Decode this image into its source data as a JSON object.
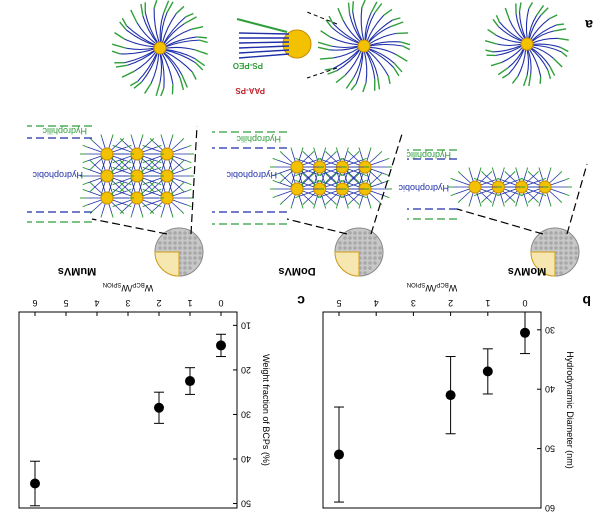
{
  "figure": {
    "panel_labels": {
      "a": "a",
      "b": "b",
      "c": "c"
    },
    "micelle_labels": {
      "ps_peo": "PS-PEO",
      "paa_ps": "PAA-PS"
    },
    "vesicle_names": {
      "mumvs": "MuMVs",
      "domvs": "DoMVs",
      "momvs": "MoMVs"
    },
    "layer_labels": {
      "hydrophilic_1": "Hydrophilic",
      "hydrophobic_1": "Hydrophobic",
      "hydrophilic_2": "Hydrophilic",
      "hydrophobic_2": "Hydrophobic",
      "hydrophilic_3": "Hydrophilic",
      "hydrophobic_3": "Hydrophobic"
    },
    "colors": {
      "hydrophilic": "#2e9e3a",
      "hydrophobic": "#1f2fa8",
      "core": "#f2c200",
      "core_edge": "#c98a00",
      "shell": "#c8c8c8"
    }
  },
  "chart_data": [
    {
      "type": "scatter",
      "panel": "b",
      "xlabel_main": "W",
      "xlabel_sub": "BCP",
      "xlabel_main2": "/W",
      "xlabel_sub2": "SPION",
      "ylabel": "Hydrodynamic Diameter (nm)",
      "ylim": [
        27,
        60
      ],
      "x_ticks": [
        "0",
        "1",
        "2",
        "3",
        "4",
        "5"
      ],
      "y_ticks": [
        "30",
        "40",
        "50",
        "60"
      ],
      "x": [
        0,
        1,
        2,
        5
      ],
      "y": [
        30.5,
        37.0,
        41.0,
        51.0
      ],
      "err": [
        3.5,
        3.8,
        6.5,
        8.0
      ]
    },
    {
      "type": "scatter",
      "panel": "c",
      "xlabel_main": "W",
      "xlabel_sub": "BCP",
      "xlabel_main2": "/W",
      "xlabel_sub2": "SPION",
      "ylabel": "Weight fraction of BCPs (%)",
      "ylim": [
        7,
        51
      ],
      "x_ticks": [
        "0",
        "1",
        "2",
        "3",
        "4",
        "5",
        "6"
      ],
      "y_ticks": [
        "10",
        "20",
        "30",
        "40",
        "50"
      ],
      "x": [
        0,
        1,
        2,
        6
      ],
      "y": [
        14.5,
        22.5,
        28.5,
        45.5
      ],
      "err": [
        2.5,
        3.0,
        3.5,
        5.0
      ]
    }
  ]
}
